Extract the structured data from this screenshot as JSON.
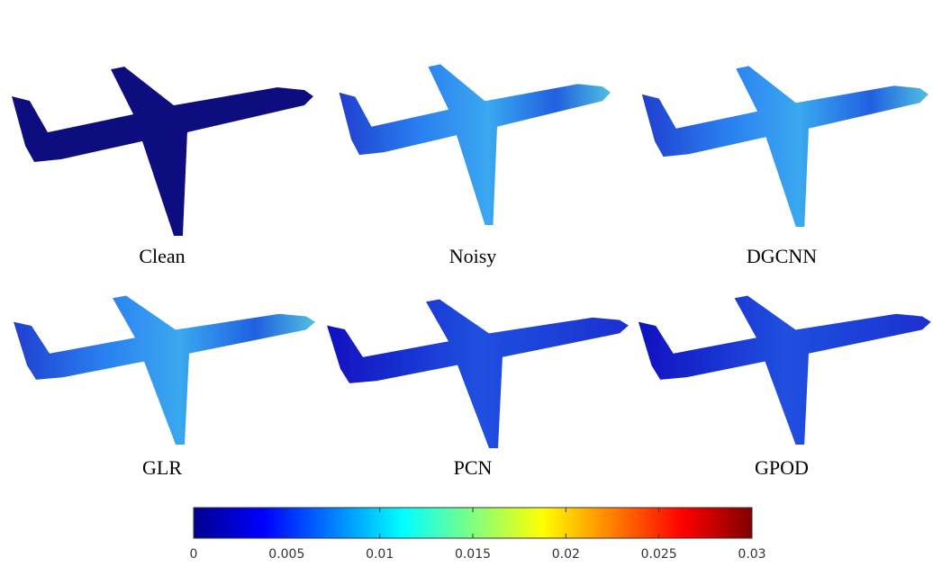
{
  "panels": [
    {
      "label": "Clean"
    },
    {
      "label": "Noisy"
    },
    {
      "label": "DGCNN"
    },
    {
      "label": "GLR"
    },
    {
      "label": "PCN"
    },
    {
      "label": "GPOD"
    }
  ],
  "colorbar": {
    "lim": [
      0,
      0.03
    ],
    "ticks": [
      0,
      0.005,
      0.01,
      0.015,
      0.02,
      0.025,
      0.03
    ]
  }
}
